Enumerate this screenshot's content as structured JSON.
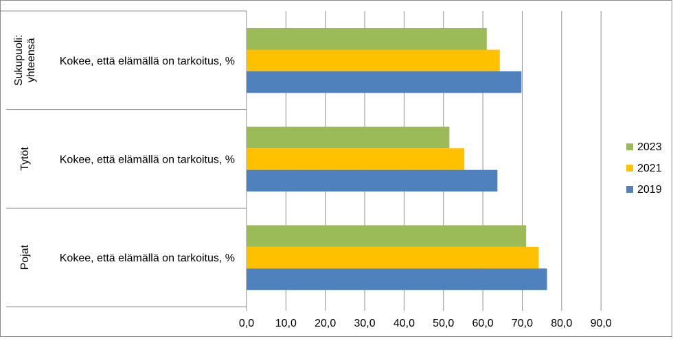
{
  "chart_data": {
    "type": "bar",
    "orientation": "horizontal",
    "title": "",
    "xlabel": "",
    "ylabel": "",
    "xlim": [
      0,
      90
    ],
    "x_ticks": [
      0,
      10,
      20,
      30,
      40,
      50,
      60,
      70,
      80,
      90
    ],
    "x_tick_labels": [
      "0,0",
      "10,0",
      "20,0",
      "30,0",
      "40,0",
      "50,0",
      "60,0",
      "70,0",
      "80,0",
      "90,0"
    ],
    "grid": true,
    "legend_position": "right",
    "groups": [
      {
        "label_lines": [
          "Sukupuoli:",
          "yhteensä"
        ],
        "category": "Kokee, että elämällä on tarkoitus, %"
      },
      {
        "label_lines": [
          "Tytöt"
        ],
        "category": "Kokee, että elämällä on tarkoitus, %"
      },
      {
        "label_lines": [
          "Pojat"
        ],
        "category": "Kokee, että elämällä on tarkoitus, %"
      }
    ],
    "series": [
      {
        "name": "2023",
        "color": "#9bbb59",
        "values": [
          61.0,
          51.5,
          71.0
        ]
      },
      {
        "name": "2021",
        "color": "#ffc000",
        "values": [
          64.3,
          55.3,
          74.2
        ]
      },
      {
        "name": "2019",
        "color": "#4f81bd",
        "values": [
          69.8,
          63.7,
          76.3
        ]
      }
    ],
    "legend_order": [
      "2023",
      "2021",
      "2019"
    ]
  }
}
